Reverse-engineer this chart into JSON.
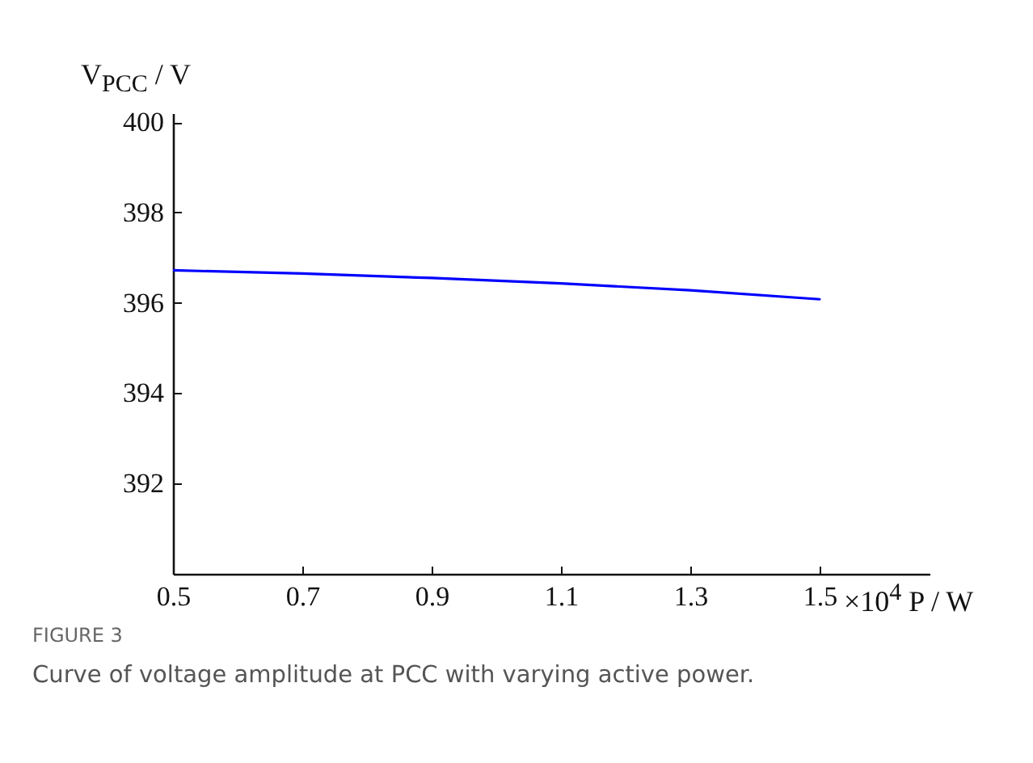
{
  "chart_data": {
    "type": "line",
    "xlabel": "×10$^{4}$ P / W",
    "ylabel": "V$_{PCC}$ / V",
    "x": [
      0.5,
      0.7,
      0.9,
      1.1,
      1.3,
      1.5
    ],
    "series": [
      {
        "color": "#0000ff",
        "values": [
          396.72,
          396.65,
          396.55,
          396.43,
          396.28,
          396.08
        ]
      }
    ],
    "xlim": [
      0.5,
      1.67
    ],
    "xticks": [
      0.5,
      0.7,
      0.9,
      1.1,
      1.3,
      1.5
    ],
    "ylim": [
      390,
      400.2
    ],
    "yticks": [
      392,
      394,
      396,
      398,
      400
    ],
    "grid": false,
    "legend": false,
    "marker": "none",
    "line_style": "solid",
    "annotations": [
      "FIGURE 3",
      "Curve of voltage amplitude at PCC with varying active power."
    ]
  }
}
